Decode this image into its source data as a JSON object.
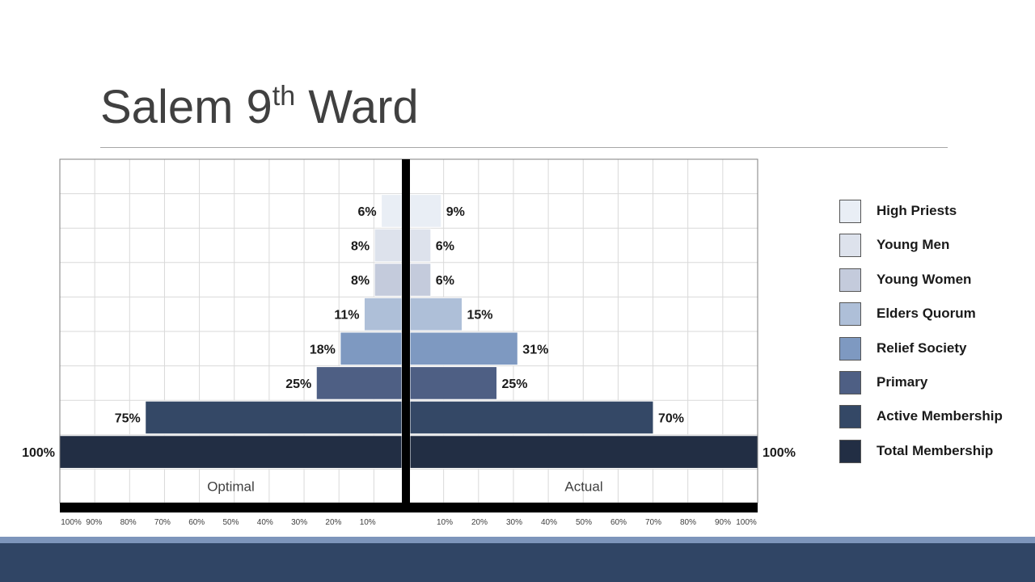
{
  "slide": {
    "title_main": "Salem 9",
    "title_sup": "th",
    "title_end": " Ward"
  },
  "chart_data": {
    "type": "bar",
    "orientation": "horizontal-diverging",
    "categories": [
      "High Priests",
      "Young Men",
      "Young Women",
      "Elders Quorum",
      "Relief Society",
      "Primary",
      "Active Membership",
      "Total Membership"
    ],
    "series": [
      {
        "name": "Optimal",
        "side": "left",
        "values": [
          6,
          8,
          8,
          11,
          18,
          25,
          75,
          100
        ],
        "labels": [
          "6%",
          "8%",
          "8%",
          "11%",
          "18%",
          "25%",
          "75%",
          "100%"
        ]
      },
      {
        "name": "Actual",
        "side": "right",
        "values": [
          9,
          6,
          6,
          15,
          31,
          25,
          70,
          100
        ],
        "labels": [
          "9%",
          "6%",
          "6%",
          "15%",
          "31%",
          "25%",
          "70%",
          "100%"
        ]
      }
    ],
    "colors": [
      "#e9eef5",
      "#dde2ec",
      "#c4cbdc",
      "#aebfd8",
      "#7e99c1",
      "#4e5f84",
      "#344866",
      "#222e44"
    ],
    "xlim": [
      0,
      100
    ],
    "xticks_left": [
      "100%",
      "90%",
      "80%",
      "70%",
      "60%",
      "50%",
      "40%",
      "30%",
      "20%",
      "10%"
    ],
    "xticks_right": [
      "10%",
      "20%",
      "30%",
      "40%",
      "50%",
      "60%",
      "70%",
      "80%",
      "90%",
      "100%"
    ],
    "grid": true,
    "legend_position": "right"
  }
}
